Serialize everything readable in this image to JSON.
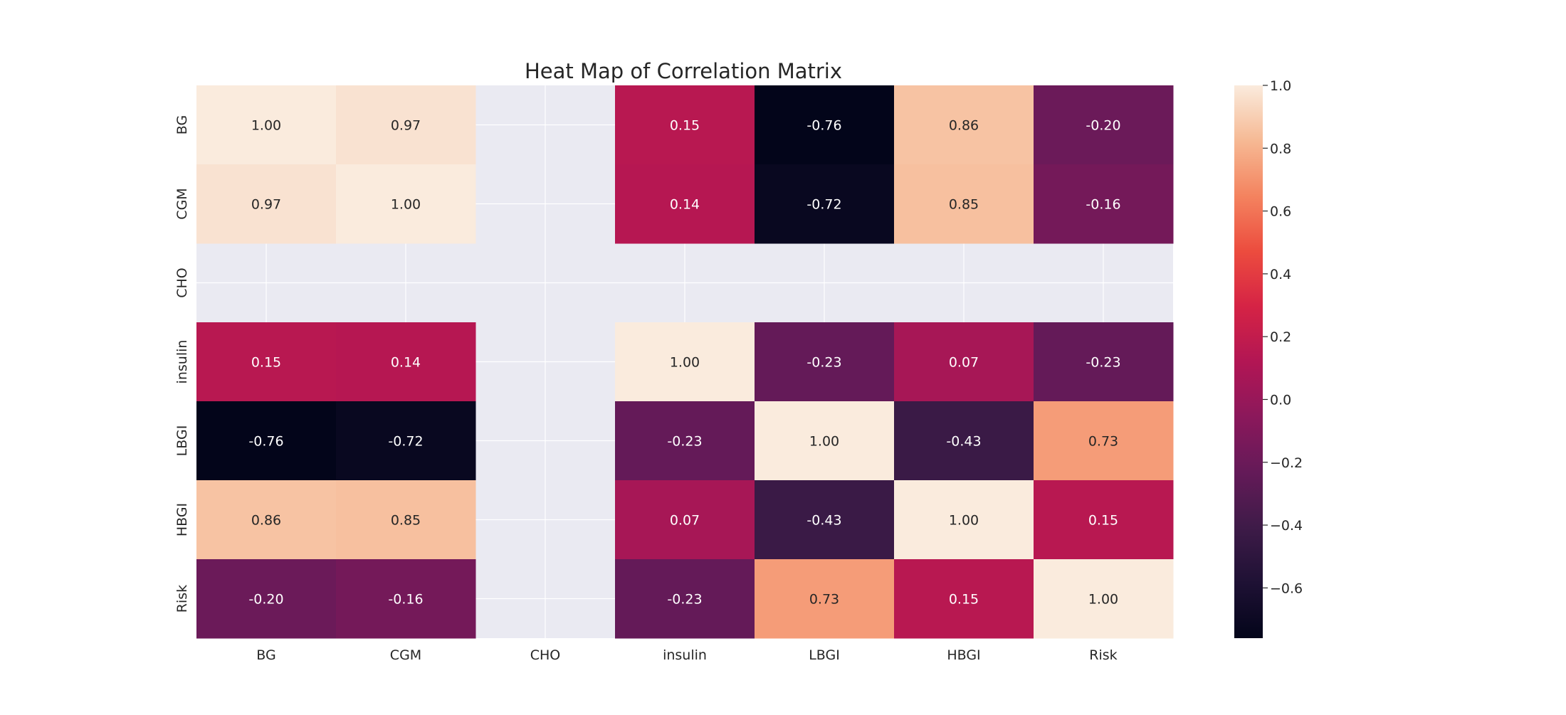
{
  "chart_data": {
    "type": "heatmap",
    "title": "Heat Map of Correlation Matrix",
    "xlabel": "",
    "ylabel": "",
    "rows": [
      "BG",
      "CGM",
      "CHO",
      "insulin",
      "LBGI",
      "HBGI",
      "Risk"
    ],
    "columns": [
      "BG",
      "CGM",
      "CHO",
      "insulin",
      "LBGI",
      "HBGI",
      "Risk"
    ],
    "values": [
      [
        1.0,
        0.97,
        null,
        0.15,
        -0.76,
        0.86,
        -0.2
      ],
      [
        0.97,
        1.0,
        null,
        0.14,
        -0.72,
        0.85,
        -0.16
      ],
      [
        null,
        null,
        null,
        null,
        null,
        null,
        null
      ],
      [
        0.15,
        0.14,
        null,
        1.0,
        -0.23,
        0.07,
        -0.23
      ],
      [
        -0.76,
        -0.72,
        null,
        -0.23,
        1.0,
        -0.43,
        0.73
      ],
      [
        0.86,
        0.85,
        null,
        0.07,
        -0.43,
        1.0,
        0.15
      ],
      [
        -0.2,
        -0.16,
        null,
        -0.23,
        0.73,
        0.15,
        1.0
      ]
    ],
    "value_format": "0.00",
    "annotated": true,
    "colormap": "rocket",
    "missing_color": "#eaeaf2",
    "grid": true,
    "colorbar": {
      "vmin": -0.76,
      "vmax": 1.0,
      "ticks": [
        1.0,
        0.8,
        0.6,
        0.4,
        0.2,
        0.0,
        -0.2,
        -0.4,
        -0.6
      ],
      "tick_labels": [
        "1.0",
        "0.8",
        "0.6",
        "0.4",
        "0.2",
        "0.0",
        "−0.2",
        "−0.4",
        "−0.6"
      ],
      "placement": "right"
    }
  }
}
